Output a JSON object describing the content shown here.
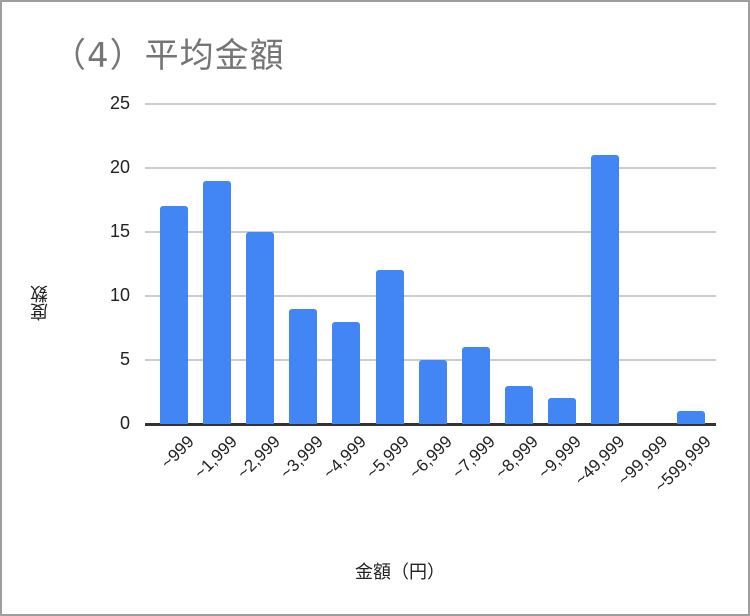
{
  "chart_data": {
    "type": "bar",
    "title": "（4）平均金額",
    "xlabel": "金額（円）",
    "ylabel": "度数",
    "categories": [
      "~999",
      "~1,999",
      "~2,999",
      "~3,999",
      "~4,999",
      "~5,999",
      "~6,999",
      "~7,999",
      "~8,999",
      "~9,999",
      "~49,999",
      "~99,999",
      "~599,999"
    ],
    "values": [
      17,
      19,
      15,
      9,
      8,
      12,
      5,
      6,
      3,
      2,
      21,
      0,
      1
    ],
    "ylim": [
      0,
      25
    ],
    "yticks": [
      "0",
      "5",
      "10",
      "15",
      "20",
      "25"
    ],
    "grid": true,
    "legend": "none",
    "bar_color": "#4285f4"
  }
}
